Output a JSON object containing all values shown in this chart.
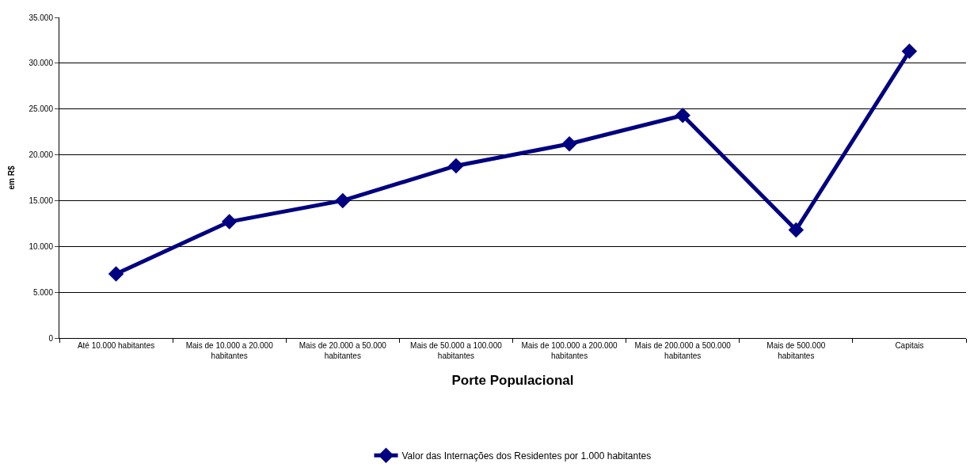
{
  "chart_data": {
    "type": "line",
    "xlabel": "Porte Populacional",
    "ylabel": "em R$",
    "categories": [
      "Até 10.000 habitantes",
      "Mais de 10.000 a 20.000 habitantes",
      "Mais de 20.000 a 50.000 habitantes",
      "Mais de 50.000 a 100.000 habitantes",
      "Mais de 100.000 a 200.000 habitantes",
      "Mais de 200.000 a 500.000 habitantes",
      "Mais de 500.000 habitantes",
      "Capitais"
    ],
    "series": [
      {
        "name": "Valor das Internações dos Residentes por 1.000 habitantes",
        "color": "#000080",
        "values": [
          7000,
          12700,
          15000,
          18800,
          21200,
          24300,
          11800,
          31300
        ]
      }
    ],
    "ylim": [
      0,
      35000
    ],
    "yticks": [
      {
        "value": 0,
        "label": "0"
      },
      {
        "value": 5000,
        "label": "5.000"
      },
      {
        "value": 10000,
        "label": "10.000"
      },
      {
        "value": 15000,
        "label": "15.000"
      },
      {
        "value": 20000,
        "label": "20.000"
      },
      {
        "value": 25000,
        "label": "25.000"
      },
      {
        "value": 30000,
        "label": "30.000"
      },
      {
        "value": 35000,
        "label": "35.000"
      }
    ],
    "grid": "y",
    "legend": "bottom",
    "marker": "diamond",
    "line_style": "solid"
  }
}
